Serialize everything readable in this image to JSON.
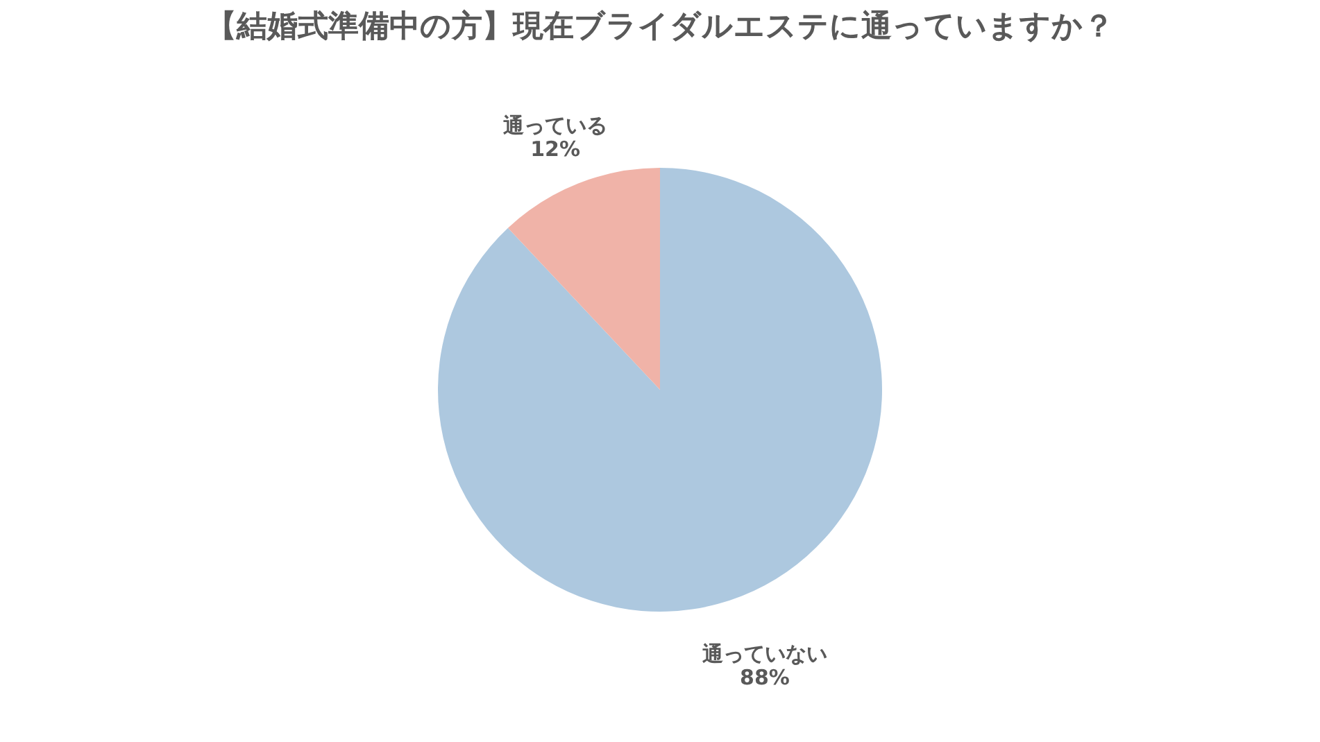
{
  "chart_data": {
    "type": "pie",
    "title": "【結婚式準備中の方】現在ブライダルエステに通っていますか？",
    "categories": [
      "通っていない",
      "通っている"
    ],
    "values": [
      88,
      12
    ],
    "colors": [
      "#adc8df",
      "#f0b3a8"
    ],
    "value_labels": [
      "88%",
      "12%"
    ],
    "legend": false
  }
}
